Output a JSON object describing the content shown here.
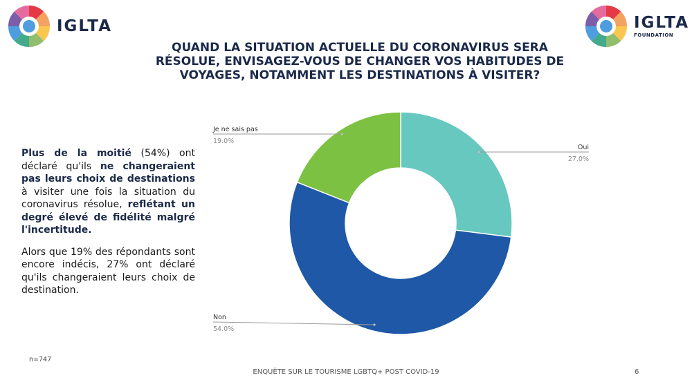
{
  "logo_left": {
    "word": "IGLTA"
  },
  "logo_right": {
    "word": "IGLTA",
    "sub": "FOUNDATION"
  },
  "logo_colors": [
    "#e63946",
    "#f4a261",
    "#f9c74f",
    "#90be6d",
    "#43aa8b",
    "#4d9de0",
    "#7b5ea7",
    "#e56b9f"
  ],
  "title_lines": [
    "QUAND LA SITUATION ACTUELLE DU CORONAVIRUS SERA",
    "RÉSOLUE, ENVISAGEZ-VOUS DE CHANGER VOS HABITUDES DE",
    "VOYAGES, NOTAMMENT LES DESTINATIONS À VISITER?"
  ],
  "summary": {
    "p1": {
      "b1": "Plus de la moitié",
      "t1": " (54%) ont déclaré qu'ils ",
      "b2": "ne changeraient pas leurs choix de destinations",
      "t2": " à visiter une fois la situation du coronavirus résolue, ",
      "b3": "reflétant un degré élevé de fidélité malgré l'incertitude."
    },
    "p2": "Alors que 19% des répondants sont encore indécis, 27% ont déclaré qu'ils changeraient leurs choix de destination."
  },
  "chart_data": {
    "type": "pie",
    "donut": true,
    "slices": [
      {
        "label": "Oui",
        "value": 27.0,
        "display": "27.0%",
        "color": "#66c8be"
      },
      {
        "label": "Non",
        "value": 54.0,
        "display": "54.0%",
        "color": "#1e58a6"
      },
      {
        "label": "Je ne sais pas",
        "value": 19.0,
        "display": "19.0%",
        "color": "#7cc142"
      }
    ]
  },
  "footer": {
    "n": "n=747",
    "center": "ENQUÊTE SUR LE TOURISME LGBTQ+ POST COVID-19",
    "page": "6"
  }
}
